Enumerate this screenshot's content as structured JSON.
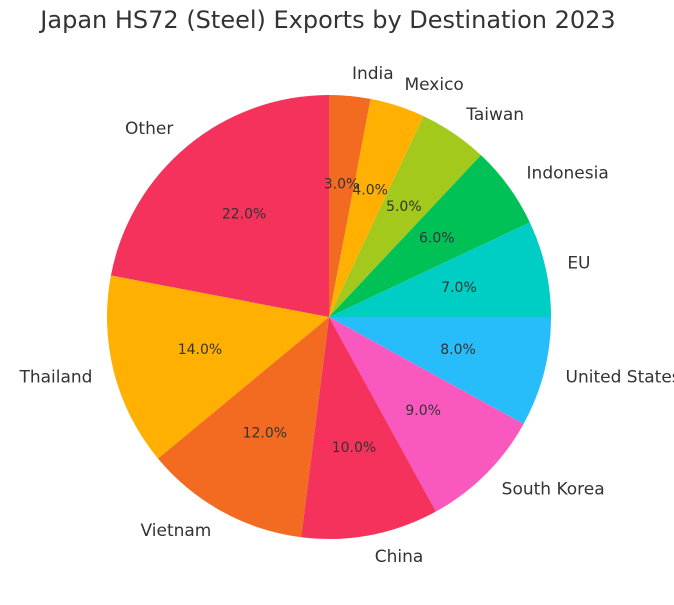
{
  "chart_data": {
    "type": "pie",
    "title": "Japan HS72 (Steel) Exports by Destination 2023",
    "start_angle_deg": 90,
    "direction": "clockwise",
    "slices": [
      {
        "label": "India",
        "value": 3.0,
        "pct_text": "3.0%",
        "color": "#f26b21"
      },
      {
        "label": "Mexico",
        "value": 4.0,
        "pct_text": "4.0%",
        "color": "#ffb000"
      },
      {
        "label": "Taiwan",
        "value": 5.0,
        "pct_text": "5.0%",
        "color": "#a2c91c"
      },
      {
        "label": "Indonesia",
        "value": 6.0,
        "pct_text": "6.0%",
        "color": "#00c155"
      },
      {
        "label": "EU",
        "value": 7.0,
        "pct_text": "7.0%",
        "color": "#00cec4"
      },
      {
        "label": "United States",
        "value": 8.0,
        "pct_text": "8.0%",
        "color": "#27bdfb"
      },
      {
        "label": "South Korea",
        "value": 9.0,
        "pct_text": "9.0%",
        "color": "#f959be"
      },
      {
        "label": "China",
        "value": 10.0,
        "pct_text": "10.0%",
        "color": "#f4325c"
      },
      {
        "label": "Vietnam",
        "value": 12.0,
        "pct_text": "12.0%",
        "color": "#f26b21"
      },
      {
        "label": "Thailand",
        "value": 14.0,
        "pct_text": "14.0%",
        "color": "#ffb000"
      },
      {
        "label": "Other",
        "value": 22.0,
        "pct_text": "22.0%",
        "color": "#f4325c"
      }
    ]
  }
}
